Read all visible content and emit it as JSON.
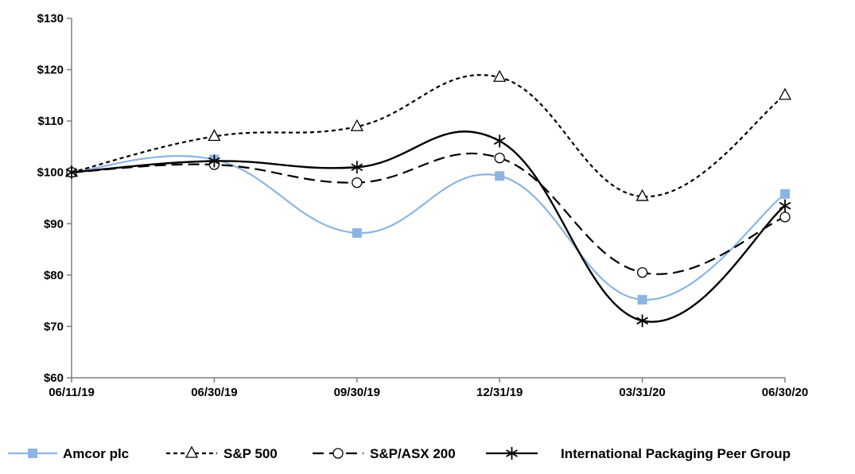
{
  "chart_data": {
    "type": "line",
    "title": "",
    "xlabel": "",
    "ylabel": "",
    "categories": [
      "06/11/19",
      "06/30/19",
      "09/30/19",
      "12/31/19",
      "03/31/20",
      "06/30/20"
    ],
    "ylim": [
      60,
      130
    ],
    "yticks": [
      60,
      70,
      80,
      90,
      100,
      110,
      120,
      130
    ],
    "ytick_labels": [
      "$60",
      "$70",
      "$80",
      "$90",
      "$100",
      "$110",
      "$120",
      "$130"
    ],
    "grid": false,
    "legend_position": "bottom",
    "series": [
      {
        "name": "Amcor plc",
        "values": [
          100,
          102.5,
          88.2,
          99.3,
          75.2,
          95.8
        ],
        "color": "#8db4e2",
        "marker": "square",
        "dash": "solid"
      },
      {
        "name": "S&P 500",
        "values": [
          100,
          107,
          108.9,
          118.5,
          95.3,
          115
        ],
        "color": "#000000",
        "marker": "triangle",
        "dash": "dotted"
      },
      {
        "name": "S&P/ASX 200",
        "values": [
          100,
          101.5,
          98,
          102.8,
          80.5,
          91.3
        ],
        "color": "#000000",
        "marker": "circle",
        "dash": "dashed"
      },
      {
        "name": "International Packaging Peer Group",
        "values": [
          100,
          102.2,
          101,
          106.1,
          71.1,
          93.5
        ],
        "color": "#000000",
        "marker": "star",
        "dash": "solid"
      }
    ]
  }
}
